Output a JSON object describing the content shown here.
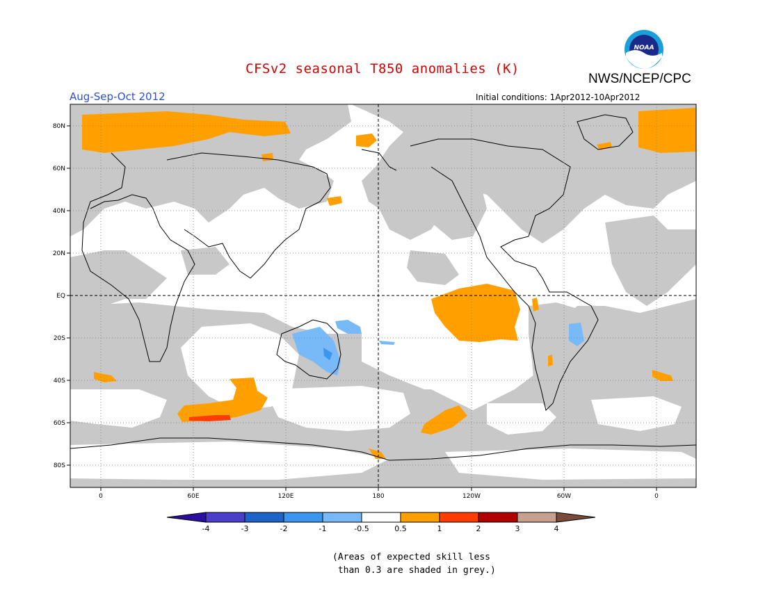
{
  "title": "CFSv2 seasonal T850 anomalies (K)",
  "agency": "NWS/NCEP/CPC",
  "season": "Aug-Sep-Oct 2012",
  "initial_conditions": "Initial conditions: 1Apr2012-10Apr2012",
  "logo_text": "NOAA",
  "colors": {
    "title": "#d40000",
    "season": "#2a4fd6",
    "grey_shade": "#c8c8c8",
    "ocean": "#ffffff"
  },
  "lat_labels": [
    "80N",
    "60N",
    "40N",
    "20N",
    "EQ",
    "20S",
    "40S",
    "60S",
    "80S"
  ],
  "lon_labels": [
    "0",
    "60E",
    "120E",
    "180",
    "120W",
    "60W",
    "0"
  ],
  "colorbar": {
    "labels": [
      "-4",
      "-3",
      "-2",
      "-1",
      "-0.5",
      "0.5",
      "1",
      "2",
      "3",
      "4"
    ],
    "colors": [
      "#2a0ea0",
      "#4a3fc8",
      "#1e64c8",
      "#3c96f0",
      "#78b9f8",
      "#ffffff",
      "#ffa000",
      "#ff3c00",
      "#b00000",
      "#c8a090",
      "#7a4a3a"
    ]
  },
  "skill_note": "(Areas of expected skill less\n than 0.3 are shaded in grey.)"
}
